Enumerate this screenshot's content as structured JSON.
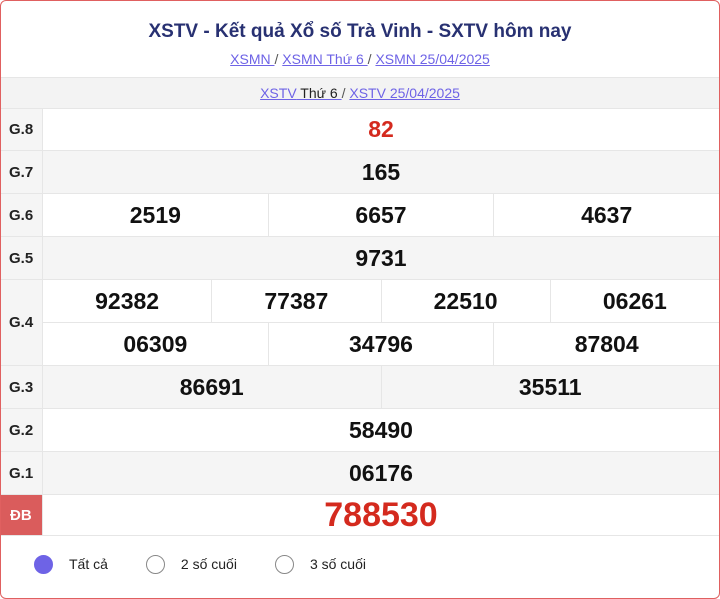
{
  "header": {
    "title": "XSTV - Kết quả Xổ số Trà Vinh - SXTV hôm nay",
    "breadcrumbs": [
      "XSMN ",
      "XSMN Thứ 6 ",
      "XSMN 25/04/2025"
    ],
    "sep": "/"
  },
  "subheader": {
    "link1": "XSTV",
    "link1_plain": " Thứ 6 ",
    "link2": "XSTV 25/04/2025",
    "sep": "/"
  },
  "prizes": [
    {
      "label": "G.8",
      "lines": [
        [
          "82"
        ]
      ]
    },
    {
      "label": "G.7",
      "lines": [
        [
          "165"
        ]
      ]
    },
    {
      "label": "G.6",
      "lines": [
        [
          "2519",
          "6657",
          "4637"
        ]
      ]
    },
    {
      "label": "G.5",
      "lines": [
        [
          "9731"
        ]
      ]
    },
    {
      "label": "G.4",
      "lines": [
        [
          "92382",
          "77387",
          "22510",
          "06261"
        ],
        [
          "06309",
          "34796",
          "87804"
        ]
      ]
    },
    {
      "label": "G.3",
      "lines": [
        [
          "86691",
          "35511"
        ]
      ]
    },
    {
      "label": "G.2",
      "lines": [
        [
          "58490"
        ]
      ]
    },
    {
      "label": "G.1",
      "lines": [
        [
          "06176"
        ]
      ]
    },
    {
      "label": "ĐB",
      "lines": [
        [
          "788530"
        ]
      ]
    }
  ],
  "filter": {
    "options": [
      "Tất cả",
      "2 số cuối",
      "3 số cuối"
    ],
    "selected": "Tất cả"
  },
  "colors": {
    "accent": "#6e63e6",
    "title": "#283172",
    "highlight": "#d42a1e",
    "special_bg": "#da5c5c",
    "border": "#e06060"
  }
}
